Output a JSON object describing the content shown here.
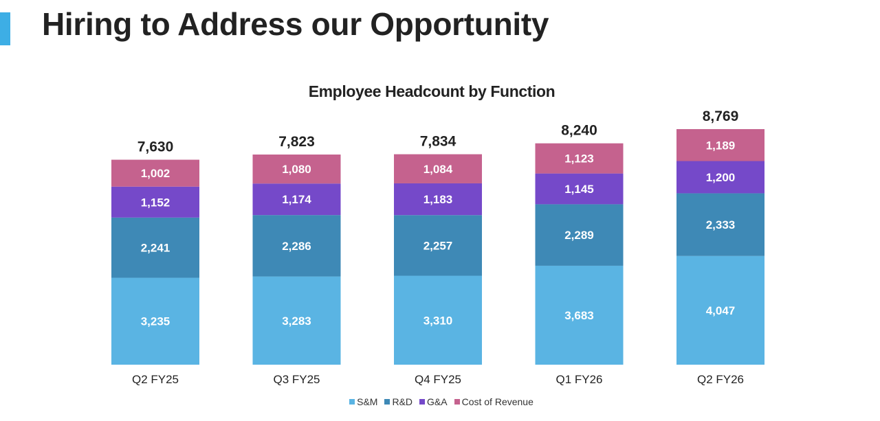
{
  "slide": {
    "title": "Hiring to Address our Opportunity",
    "accent_color": "#3daee5"
  },
  "chart_data": {
    "type": "bar",
    "stacked": true,
    "title": "Employee Headcount by Function",
    "categories": [
      "Q2 FY25",
      "Q3 FY25",
      "Q4 FY25",
      "Q1 FY26",
      "Q2 FY26"
    ],
    "totals": [
      7630,
      7823,
      7834,
      8240,
      8769
    ],
    "totals_labels": [
      "7,630",
      "7,823",
      "7,834",
      "8,240",
      "8,769"
    ],
    "series": [
      {
        "name": "S&M",
        "color": "#5ab4e3",
        "values": [
          3235,
          3283,
          3310,
          3683,
          4047
        ]
      },
      {
        "name": "R&D",
        "color": "#3e89b6",
        "values": [
          2241,
          2286,
          2257,
          2289,
          2333
        ]
      },
      {
        "name": "G&A",
        "color": "#7549c9",
        "values": [
          1152,
          1174,
          1183,
          1145,
          1200
        ]
      },
      {
        "name": "Cost of Revenue",
        "color": "#c5628e",
        "values": [
          1002,
          1080,
          1084,
          1123,
          1189
        ]
      }
    ],
    "legend_position": "bottom",
    "grid": false,
    "ylim": [
      0,
      8769
    ]
  }
}
